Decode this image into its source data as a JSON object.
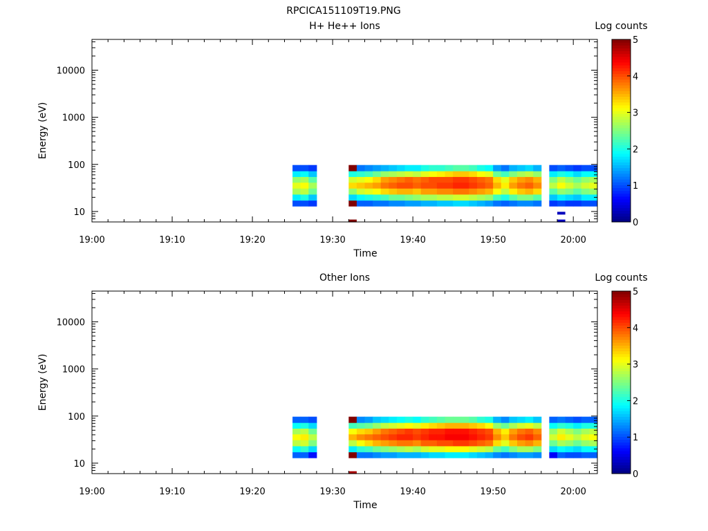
{
  "figure_title": "RPCICA151109T19.PNG",
  "chart_data": [
    {
      "type": "heatmap",
      "title": "H+ He++ Ions",
      "xlabel": "Time",
      "ylabel": "Energy (eV)",
      "y_scale": "log",
      "ylim": [
        6,
        45000
      ],
      "x_range": [
        "19:00",
        "20:03"
      ],
      "x_ticks": [
        "19:00",
        "19:10",
        "19:20",
        "19:30",
        "19:40",
        "19:50",
        "20:00"
      ],
      "y_ticks": [
        10,
        100,
        1000,
        10000
      ],
      "y_tick_labels": [
        "10",
        "100",
        "1000",
        "10000"
      ],
      "colorbar": {
        "label": "Log counts",
        "range": [
          0,
          5
        ],
        "ticks": [
          "0",
          "1",
          "2",
          "3",
          "4",
          "5"
        ]
      },
      "time_bins": [
        "19:25",
        "19:26",
        "19:27",
        "19:32",
        "19:33",
        "19:34",
        "19:35",
        "19:36",
        "19:37",
        "19:38",
        "19:39",
        "19:40",
        "19:41",
        "19:42",
        "19:43",
        "19:44",
        "19:45",
        "19:46",
        "19:47",
        "19:48",
        "19:49",
        "19:50",
        "19:51",
        "19:52",
        "19:53",
        "19:54",
        "19:55",
        "19:57",
        "19:58",
        "19:59",
        "20:00",
        "20:01",
        "20:02"
      ],
      "energy_bins_eV": [
        15,
        20,
        27,
        36,
        48,
        63,
        84
      ],
      "log_counts": [
        [
          1.0,
          1.8,
          2.7,
          3.0,
          2.6,
          1.8,
          1.0
        ],
        [
          1.0,
          2.0,
          2.8,
          3.1,
          2.7,
          1.9,
          1.0
        ],
        [
          0.9,
          1.6,
          2.4,
          2.7,
          2.3,
          1.6,
          0.9
        ],
        [
          5.0,
          1.7,
          2.6,
          3.3,
          2.9,
          2.0,
          5.0
        ],
        [
          1.1,
          1.9,
          2.9,
          3.4,
          3.0,
          2.1,
          1.2
        ],
        [
          1.1,
          2.0,
          3.0,
          3.5,
          3.1,
          2.2,
          1.3
        ],
        [
          1.2,
          2.1,
          3.1,
          3.6,
          3.3,
          2.4,
          1.4
        ],
        [
          1.2,
          2.2,
          3.3,
          3.8,
          3.6,
          2.6,
          1.5
        ],
        [
          1.3,
          2.4,
          3.4,
          3.9,
          3.7,
          2.7,
          1.6
        ],
        [
          1.3,
          2.4,
          3.5,
          4.0,
          3.8,
          2.8,
          1.7
        ],
        [
          1.4,
          2.5,
          3.5,
          4.0,
          3.9,
          2.9,
          1.8
        ],
        [
          1.4,
          2.6,
          3.4,
          3.9,
          3.8,
          2.8,
          1.8
        ],
        [
          1.5,
          2.7,
          3.6,
          4.0,
          3.9,
          3.0,
          2.0
        ],
        [
          1.5,
          2.7,
          3.6,
          4.0,
          4.0,
          3.1,
          2.1
        ],
        [
          1.6,
          2.8,
          3.7,
          4.1,
          4.0,
          3.2,
          2.1
        ],
        [
          1.6,
          2.8,
          3.7,
          4.1,
          4.0,
          3.3,
          2.2
        ],
        [
          1.7,
          2.9,
          3.8,
          4.2,
          4.1,
          3.4,
          2.3
        ],
        [
          1.7,
          2.9,
          3.8,
          4.2,
          4.1,
          3.4,
          2.3
        ],
        [
          1.6,
          2.8,
          3.7,
          4.1,
          4.0,
          3.3,
          2.2
        ],
        [
          1.5,
          2.7,
          3.6,
          4.0,
          3.9,
          3.1,
          2.0
        ],
        [
          1.4,
          2.6,
          3.5,
          3.9,
          3.8,
          3.0,
          1.9
        ],
        [
          1.2,
          2.2,
          3.1,
          3.5,
          3.3,
          2.4,
          1.4
        ],
        [
          1.1,
          2.0,
          2.8,
          3.2,
          3.0,
          2.2,
          1.2
        ],
        [
          1.2,
          2.3,
          3.2,
          3.6,
          3.4,
          2.5,
          1.5
        ],
        [
          1.3,
          2.5,
          3.4,
          3.8,
          3.6,
          2.7,
          1.6
        ],
        [
          1.3,
          2.5,
          3.5,
          3.9,
          3.7,
          2.8,
          1.7
        ],
        [
          1.2,
          2.3,
          3.3,
          3.7,
          3.5,
          2.6,
          1.5
        ],
        [
          0.9,
          1.6,
          2.3,
          2.8,
          2.5,
          1.8,
          1.0
        ],
        [
          1.0,
          1.8,
          2.6,
          3.1,
          2.8,
          2.0,
          1.1
        ],
        [
          0.9,
          1.7,
          2.5,
          2.9,
          2.6,
          1.9,
          1.0
        ],
        [
          0.9,
          1.6,
          2.3,
          2.7,
          2.4,
          1.7,
          0.9
        ],
        [
          1.0,
          1.8,
          2.5,
          2.9,
          2.6,
          1.9,
          1.0
        ],
        [
          1.0,
          1.8,
          2.6,
          3.0,
          2.7,
          1.9,
          1.0
        ]
      ],
      "isolated_points": [
        {
          "time": "19:32",
          "energy_eV": 6.3,
          "log_count": 5.0
        },
        {
          "time": "19:58",
          "energy_eV": 9.2,
          "log_count": 0.3
        },
        {
          "time": "19:58",
          "energy_eV": 6.3,
          "log_count": 0.3
        }
      ]
    },
    {
      "type": "heatmap",
      "title": "Other Ions",
      "xlabel": "Time",
      "ylabel": "Energy (eV)",
      "y_scale": "log",
      "ylim": [
        6,
        45000
      ],
      "x_range": [
        "19:00",
        "20:03"
      ],
      "x_ticks": [
        "19:00",
        "19:10",
        "19:20",
        "19:30",
        "19:40",
        "19:50",
        "20:00"
      ],
      "y_ticks": [
        10,
        100,
        1000,
        10000
      ],
      "y_tick_labels": [
        "10",
        "100",
        "1000",
        "10000"
      ],
      "colorbar": {
        "label": "Log counts",
        "range": [
          0,
          5
        ],
        "ticks": [
          "0",
          "1",
          "2",
          "3",
          "4",
          "5"
        ]
      },
      "time_bins": [
        "19:25",
        "19:26",
        "19:27",
        "19:32",
        "19:33",
        "19:34",
        "19:35",
        "19:36",
        "19:37",
        "19:38",
        "19:39",
        "19:40",
        "19:41",
        "19:42",
        "19:43",
        "19:44",
        "19:45",
        "19:46",
        "19:47",
        "19:48",
        "19:49",
        "19:50",
        "19:51",
        "19:52",
        "19:53",
        "19:54",
        "19:55",
        "19:57",
        "19:58",
        "19:59",
        "20:00",
        "20:01",
        "20:02"
      ],
      "energy_bins_eV": [
        15,
        20,
        27,
        36,
        48,
        63,
        84
      ],
      "log_counts": [
        [
          1.1,
          1.9,
          2.8,
          3.1,
          2.7,
          1.9,
          1.1
        ],
        [
          1.1,
          2.1,
          2.9,
          3.2,
          2.8,
          2.0,
          1.1
        ],
        [
          0.7,
          1.7,
          2.5,
          2.8,
          2.4,
          1.7,
          1.0
        ],
        [
          5.0,
          1.8,
          2.8,
          3.5,
          3.1,
          2.2,
          5.0
        ],
        [
          1.2,
          2.1,
          3.1,
          3.7,
          3.3,
          2.3,
          1.3
        ],
        [
          1.2,
          2.2,
          3.3,
          3.8,
          3.4,
          2.4,
          1.4
        ],
        [
          1.3,
          2.4,
          3.5,
          3.9,
          3.6,
          2.6,
          1.6
        ],
        [
          1.4,
          2.5,
          3.6,
          4.0,
          3.8,
          2.8,
          1.7
        ],
        [
          1.4,
          2.6,
          3.7,
          4.1,
          3.9,
          2.9,
          1.8
        ],
        [
          1.5,
          2.7,
          3.8,
          4.2,
          4.0,
          3.0,
          1.9
        ],
        [
          1.5,
          2.8,
          3.8,
          4.2,
          4.1,
          3.1,
          2.0
        ],
        [
          1.5,
          2.7,
          3.7,
          4.1,
          4.0,
          3.0,
          1.9
        ],
        [
          1.6,
          2.9,
          3.9,
          4.2,
          4.1,
          3.2,
          2.1
        ],
        [
          1.7,
          3.0,
          3.9,
          4.3,
          4.2,
          3.3,
          2.2
        ],
        [
          1.7,
          3.0,
          4.0,
          4.3,
          4.2,
          3.4,
          2.3
        ],
        [
          1.8,
          3.1,
          4.0,
          4.4,
          4.3,
          3.5,
          2.4
        ],
        [
          1.8,
          3.1,
          4.1,
          4.4,
          4.3,
          3.5,
          2.4
        ],
        [
          1.8,
          3.1,
          4.1,
          4.4,
          4.3,
          3.5,
          2.4
        ],
        [
          1.7,
          3.0,
          4.0,
          4.3,
          4.2,
          3.4,
          2.3
        ],
        [
          1.6,
          2.9,
          3.9,
          4.2,
          4.1,
          3.3,
          2.1
        ],
        [
          1.5,
          2.8,
          3.8,
          4.1,
          4.0,
          3.1,
          2.0
        ],
        [
          1.3,
          2.4,
          3.3,
          3.7,
          3.5,
          2.6,
          1.5
        ],
        [
          1.2,
          2.2,
          3.0,
          3.4,
          3.2,
          2.4,
          1.3
        ],
        [
          1.3,
          2.5,
          3.4,
          3.8,
          3.6,
          2.7,
          1.6
        ],
        [
          1.4,
          2.7,
          3.6,
          4.0,
          3.8,
          2.9,
          1.7
        ],
        [
          1.4,
          2.7,
          3.7,
          4.1,
          3.9,
          3.0,
          1.8
        ],
        [
          1.3,
          2.5,
          3.5,
          3.9,
          3.7,
          2.8,
          1.6
        ],
        [
          0.6,
          1.7,
          2.4,
          2.9,
          2.6,
          1.9,
          1.1
        ],
        [
          1.1,
          1.9,
          2.7,
          3.2,
          2.9,
          2.1,
          1.2
        ],
        [
          1.0,
          1.8,
          2.6,
          3.0,
          2.7,
          2.0,
          1.1
        ],
        [
          1.0,
          1.7,
          2.4,
          2.8,
          2.5,
          1.8,
          1.0
        ],
        [
          1.1,
          1.9,
          2.6,
          3.0,
          2.7,
          2.0,
          1.1
        ],
        [
          1.1,
          1.9,
          2.7,
          3.1,
          2.8,
          2.0,
          1.1
        ]
      ],
      "isolated_points": [
        {
          "time": "19:32",
          "energy_eV": 6.3,
          "log_count": 4.8
        }
      ]
    }
  ]
}
